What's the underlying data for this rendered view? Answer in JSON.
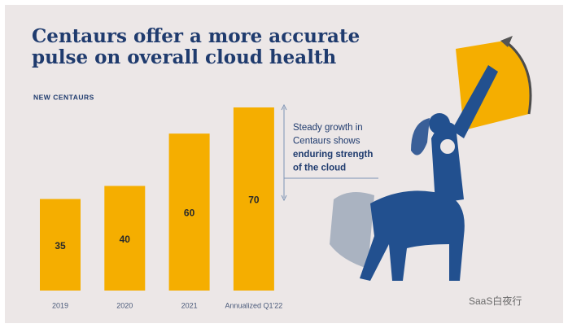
{
  "chart_data": {
    "type": "bar",
    "title": [
      "Centaurs offer a more accurate",
      "pulse on overall cloud health"
    ],
    "subtitle": "NEW CENTAURS",
    "categories": [
      "2019",
      "2020",
      "2021",
      "Annualized Q1'22"
    ],
    "values": [
      35,
      40,
      60,
      70
    ],
    "color": "#f5ae00",
    "annotation": [
      "Steady growth in",
      "Centaurs shows"
    ],
    "annotation_bold": [
      "enduring strength",
      "of the cloud"
    ],
    "watermark": "SaaS白夜行"
  }
}
